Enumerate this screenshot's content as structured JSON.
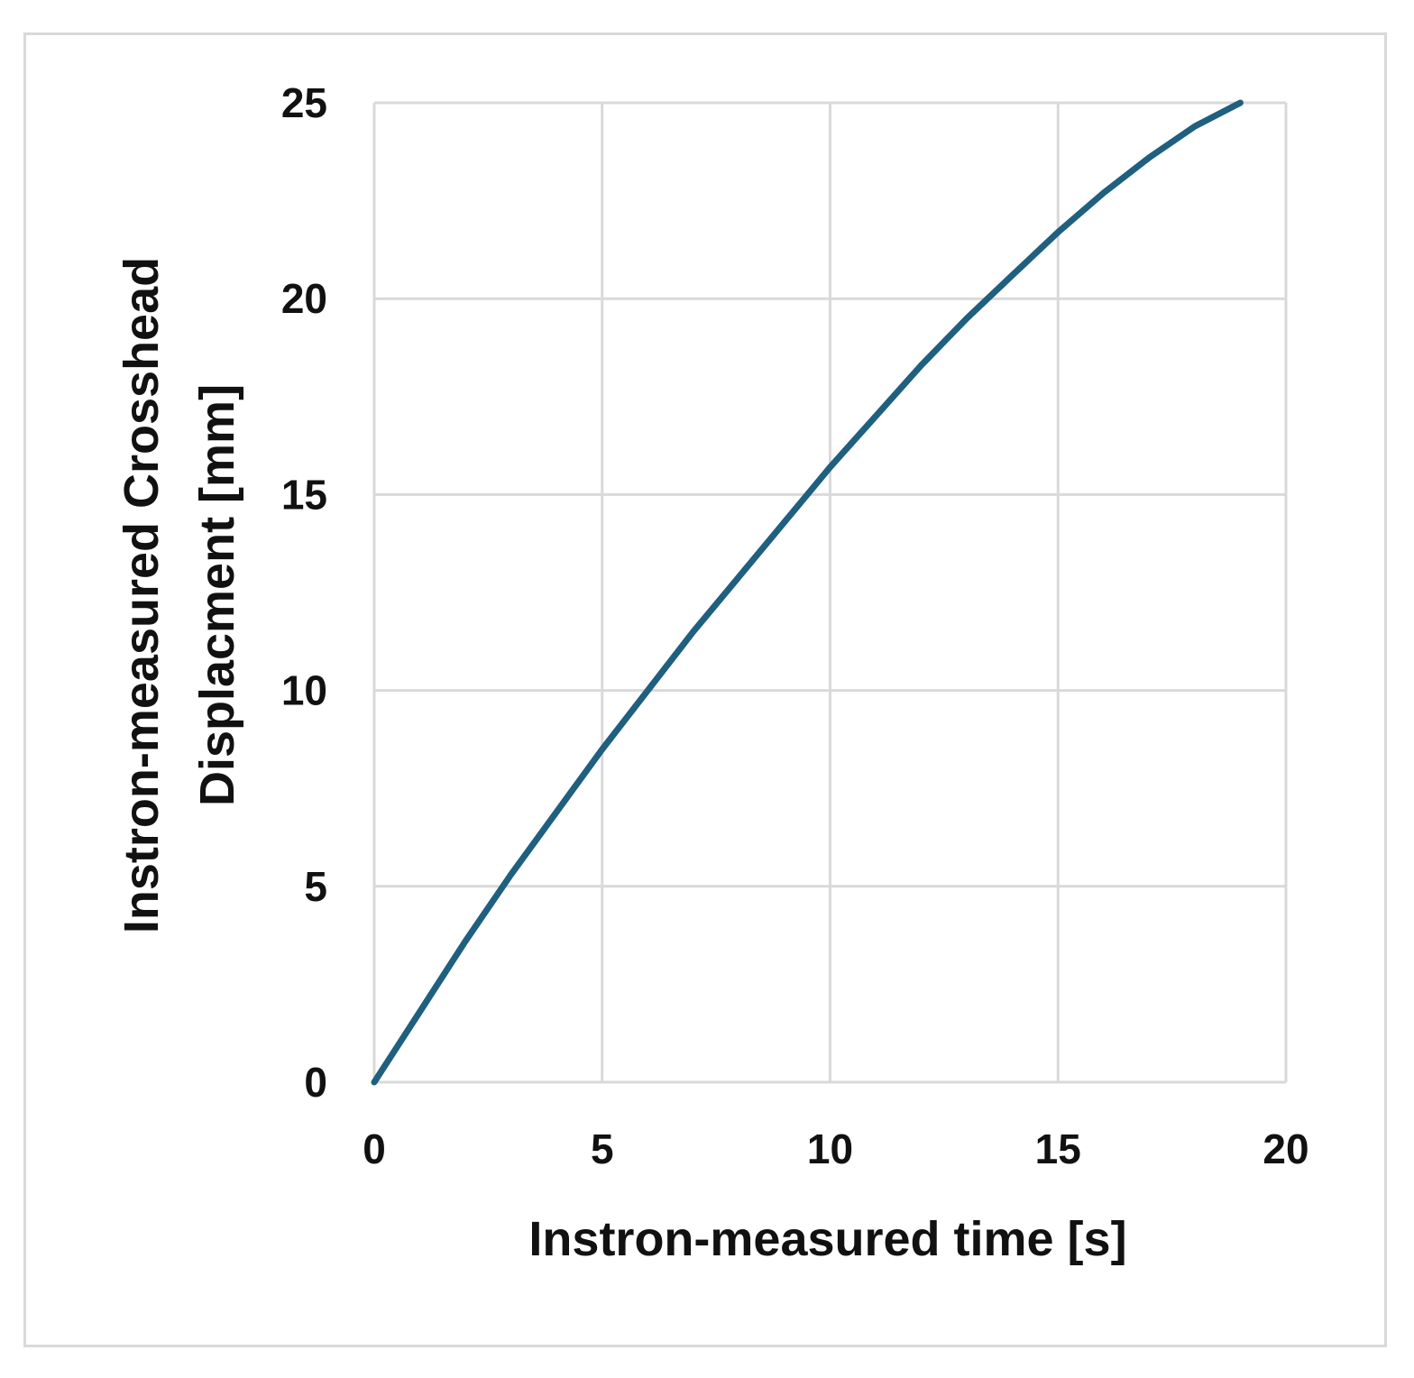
{
  "chart_data": {
    "type": "line",
    "title": "",
    "xlabel": "Instron-measured time [s]",
    "ylabel_lines": [
      "Instron-measured Crosshead",
      "Displacment [mm]"
    ],
    "xlim": [
      0,
      20
    ],
    "ylim": [
      0,
      25
    ],
    "xticks": [
      0,
      5,
      10,
      15,
      20
    ],
    "yticks": [
      0,
      5,
      10,
      15,
      20,
      25
    ],
    "grid": true,
    "legend": "none",
    "line_color": "#1f5f7f",
    "grid_color": "#d9d9d9",
    "series": [
      {
        "x": [
          0,
          1,
          2,
          3,
          4,
          5,
          6,
          7,
          8,
          9,
          10,
          11,
          12,
          13,
          14,
          15,
          16,
          17,
          18,
          19
        ],
        "y": [
          0,
          1.8,
          3.6,
          5.3,
          6.9,
          8.5,
          10.0,
          11.5,
          12.9,
          14.3,
          15.7,
          17.0,
          18.3,
          19.5,
          20.6,
          21.7,
          22.7,
          23.6,
          24.4,
          25.0
        ]
      }
    ]
  }
}
